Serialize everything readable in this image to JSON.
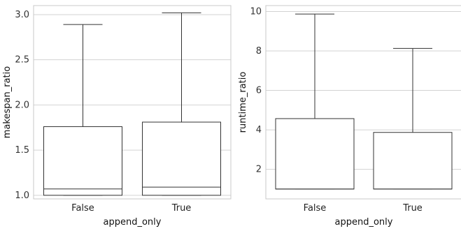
{
  "chart_data": [
    {
      "type": "box",
      "xlabel": "append_only",
      "ylabel": "makespan_ratio",
      "categories": [
        "False",
        "True"
      ],
      "yticks": [
        "1.0",
        "1.5",
        "2.0",
        "2.5",
        "3.0"
      ],
      "ylim": [
        0.96,
        3.1
      ],
      "grid": true,
      "boxes": [
        {
          "category": "False",
          "whislo": 1.0,
          "q1": 1.0,
          "med": 1.07,
          "q3": 1.76,
          "whishi": 2.89
        },
        {
          "category": "True",
          "whislo": 1.0,
          "q1": 1.0,
          "med": 1.09,
          "q3": 1.81,
          "whishi": 3.02
        }
      ]
    },
    {
      "type": "box",
      "xlabel": "append_only",
      "ylabel": "runtime_ratio",
      "categories": [
        "False",
        "True"
      ],
      "yticks": [
        "2",
        "4",
        "6",
        "8",
        "10"
      ],
      "ylim": [
        0.5,
        10.3
      ],
      "grid": true,
      "boxes": [
        {
          "category": "False",
          "whislo": 1.0,
          "q1": 1.0,
          "med": 1.0,
          "q3": 4.57,
          "whishi": 9.87
        },
        {
          "category": "True",
          "whislo": 1.0,
          "q1": 1.0,
          "med": 1.0,
          "q3": 3.87,
          "whishi": 8.13
        }
      ]
    }
  ]
}
